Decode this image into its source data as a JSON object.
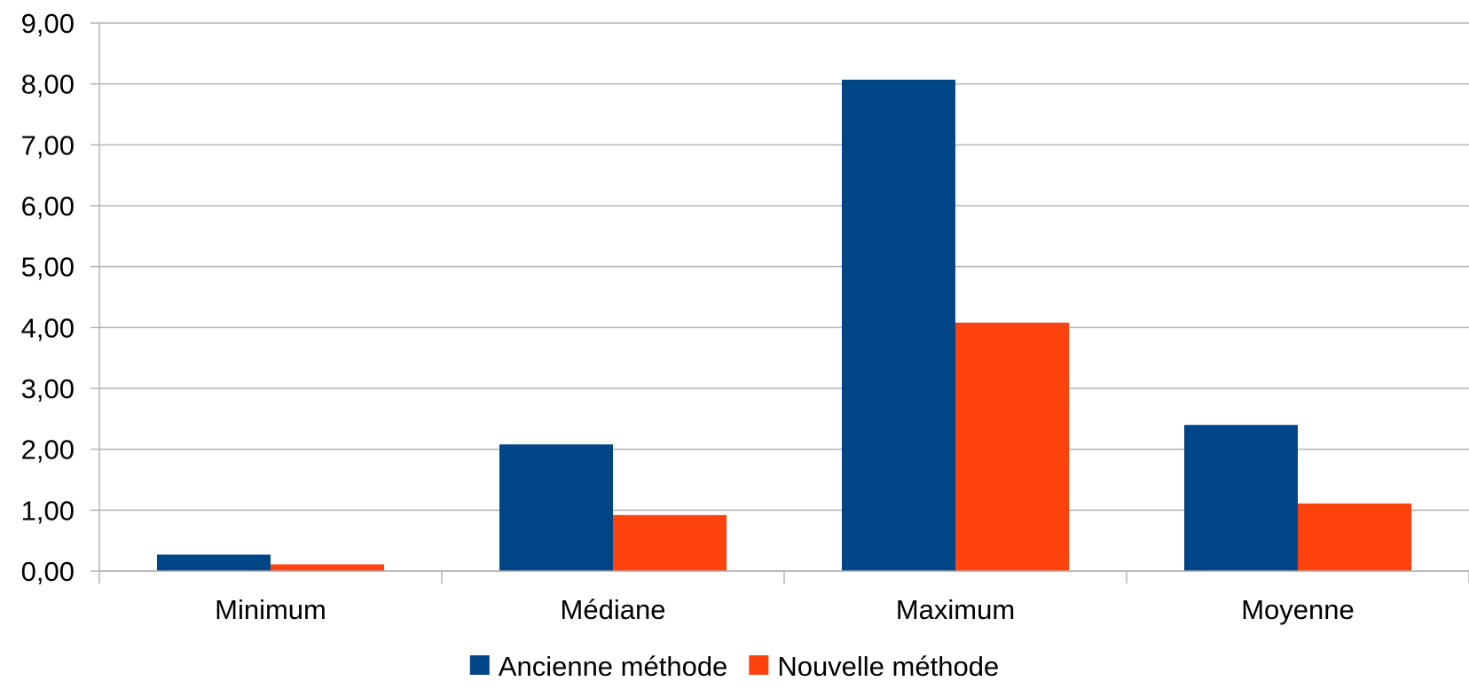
{
  "chart_data": {
    "type": "bar",
    "categories": [
      "Minimum",
      "Médiane",
      "Maximum",
      "Moyenne"
    ],
    "series": [
      {
        "name": "Ancienne méthode",
        "color": "#004586",
        "values": [
          0.27,
          2.08,
          8.07,
          2.4
        ]
      },
      {
        "name": "Nouvelle méthode",
        "color": "#ff420e",
        "values": [
          0.11,
          0.92,
          4.08,
          1.11
        ]
      }
    ],
    "y_ticks": [
      "0,00",
      "1,00",
      "2,00",
      "3,00",
      "4,00",
      "5,00",
      "6,00",
      "7,00",
      "8,00",
      "9,00"
    ],
    "ylim": [
      0,
      9
    ],
    "title": "",
    "xlabel": "",
    "ylabel": "",
    "grid": true,
    "legend_position": "bottom"
  }
}
